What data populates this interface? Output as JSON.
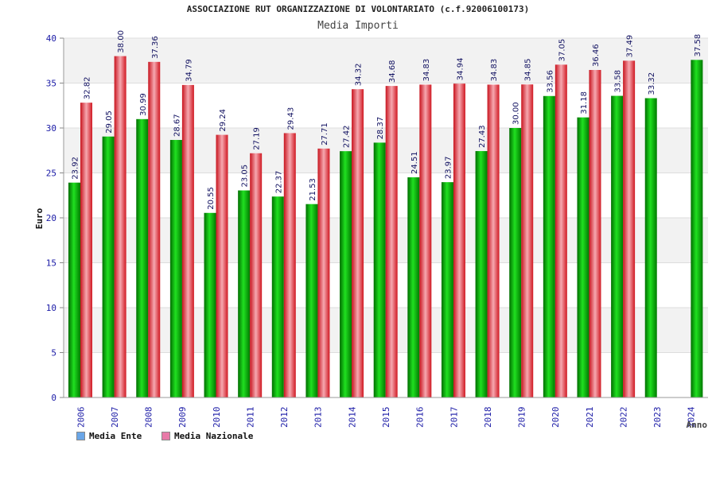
{
  "chart_data": {
    "type": "bar",
    "title": "ASSOCIAZIONE RUT ORGANIZZAZIONE DI VOLONTARIATO (c.f.92006100173)",
    "subtitle": "Media Importi",
    "xlabel": "Anno",
    "ylabel": "Euro",
    "ylim": [
      0,
      40
    ],
    "yticks": [
      "0",
      "5",
      "10",
      "15",
      "20",
      "25",
      "30",
      "35",
      "40"
    ],
    "grid": true,
    "legend_position": "bottom-left",
    "categories": [
      "2006",
      "2007",
      "2008",
      "2009",
      "2010",
      "2011",
      "2012",
      "2013",
      "2014",
      "2015",
      "2016",
      "2017",
      "2018",
      "2019",
      "2020",
      "2021",
      "2022",
      "2023",
      "2024"
    ],
    "series": [
      {
        "name": "Media Ente",
        "color": "#00b000",
        "legend_color": "#6aa6e8",
        "values": [
          23.92,
          29.05,
          30.99,
          28.67,
          20.55,
          23.05,
          22.37,
          21.53,
          27.42,
          28.37,
          24.51,
          23.97,
          27.43,
          30.0,
          33.56,
          31.18,
          33.58,
          33.32,
          null
        ],
        "labels": [
          "23.92",
          "29.05",
          "30.99",
          "28.67",
          "20.55",
          "23.05",
          "22.37",
          "21.53",
          "27.42",
          "28.37",
          "24.51",
          "23.97",
          "27.43",
          "30.00",
          "33.56",
          "31.18",
          "33.58",
          "33.32",
          null
        ]
      },
      {
        "name": "Media Nazionale",
        "color": "#e8303a",
        "legend_color": "#e87aa8",
        "values": [
          32.82,
          38.0,
          37.36,
          34.79,
          29.24,
          27.19,
          29.43,
          27.71,
          34.32,
          34.68,
          34.83,
          34.94,
          34.83,
          34.85,
          37.05,
          36.46,
          37.49,
          null,
          null
        ],
        "labels": [
          "32.82",
          "38.00",
          "37.36",
          "34.79",
          "29.24",
          "27.19",
          "29.43",
          "27.71",
          "34.32",
          "34.68",
          "34.83",
          "34.94",
          "34.83",
          "34.85",
          "37.05",
          "36.46",
          "37.49",
          null,
          null
        ]
      }
    ],
    "extra_bar": {
      "category": "2024",
      "value": 37.58,
      "label": "37.58",
      "color": "#00b000"
    }
  }
}
